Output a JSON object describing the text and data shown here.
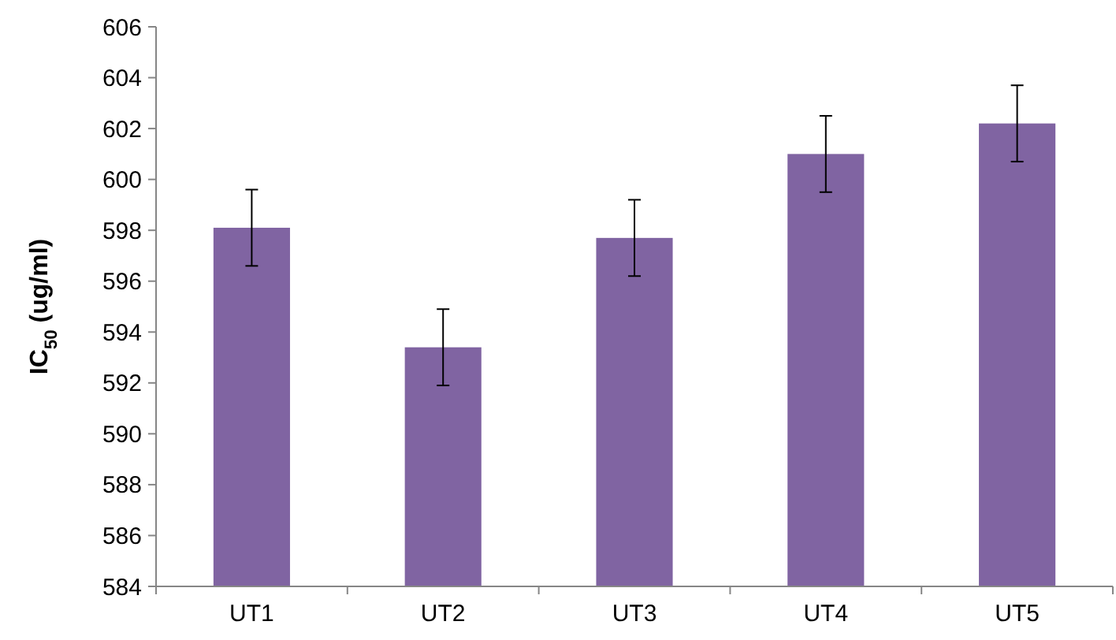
{
  "chart_data": {
    "type": "bar",
    "ylabel": "IC$_{50}$  (ug/ml)",
    "categories": [
      "UT1",
      "UT2",
      "UT3",
      "UT4",
      "UT5"
    ],
    "values": [
      598.1,
      593.4,
      597.7,
      601.0,
      602.2
    ],
    "errors": [
      1.5,
      1.5,
      1.5,
      1.5,
      1.5
    ],
    "color": "#8064a2",
    "ylim": [
      584,
      606
    ],
    "yticks": [
      584,
      586,
      588,
      590,
      592,
      594,
      596,
      598,
      600,
      602,
      604,
      606
    ],
    "grid": false
  }
}
